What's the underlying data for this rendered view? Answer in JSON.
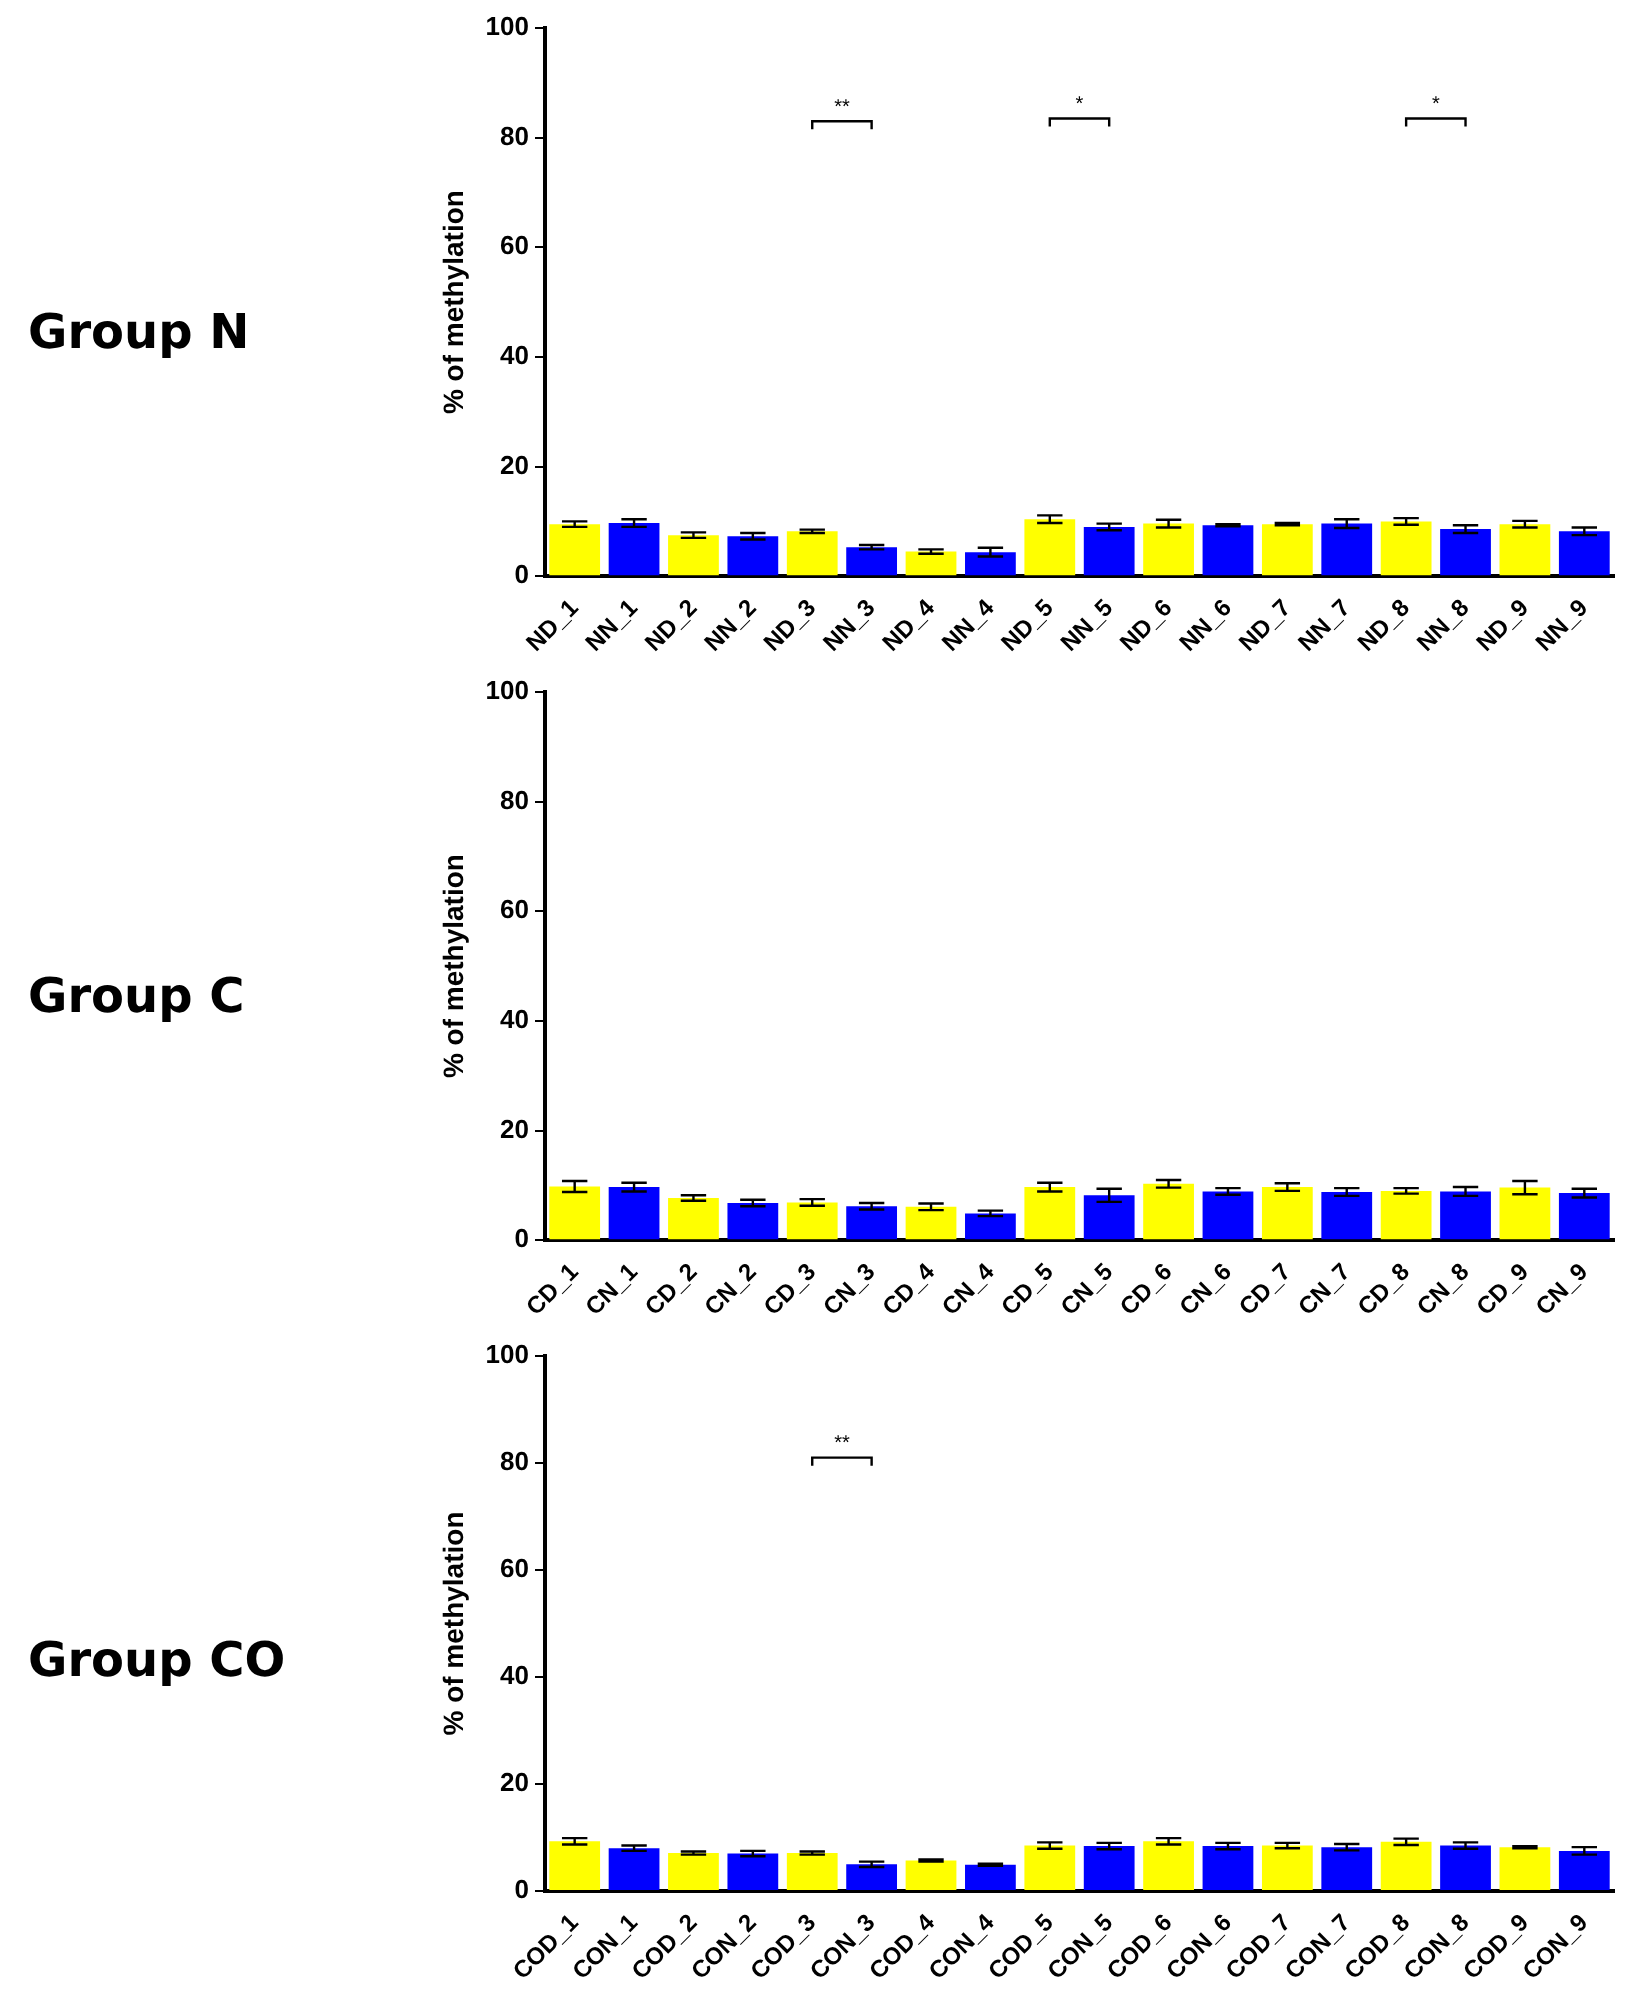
{
  "chart_data": [
    {
      "type": "bar",
      "title": "Group N",
      "ylabel": "% of methylation",
      "categories": [
        "ND_1",
        "NN_1",
        "ND_2",
        "NN_2",
        "ND_3",
        "NN_3",
        "ND_4",
        "NN_4",
        "ND_5",
        "NN_5",
        "ND_6",
        "NN_6",
        "ND_7",
        "NN_7",
        "ND_8",
        "NN_8",
        "ND_9",
        "NN_9"
      ],
      "values": [
        9.5,
        9.7,
        7.5,
        7.3,
        8.2,
        5.3,
        4.5,
        4.4,
        10.4,
        9,
        9.6,
        9.3,
        9.5,
        9.6,
        10,
        8.6,
        9.5,
        8.2
      ],
      "errors": [
        0.5,
        0.7,
        0.5,
        0.6,
        0.3,
        0.4,
        0.4,
        0.8,
        0.7,
        0.6,
        0.7,
        0.2,
        0.2,
        0.8,
        0.6,
        0.7,
        0.6,
        0.7
      ],
      "colors": [
        "#ffff00",
        "#0000ff",
        "#ffff00",
        "#0000ff",
        "#ffff00",
        "#0000ff",
        "#ffff00",
        "#0000ff",
        "#ffff00",
        "#0000ff",
        "#ffff00",
        "#0000ff",
        "#ffff00",
        "#0000ff",
        "#ffff00",
        "#0000ff",
        "#ffff00",
        "#0000ff"
      ],
      "ylim": [
        0,
        100
      ],
      "yticks": [
        0,
        20,
        40,
        60,
        80,
        100
      ],
      "grid": false,
      "legend": false,
      "annotations": [
        "**",
        "*",
        "*"
      ]
    },
    {
      "type": "bar",
      "title": "Group C",
      "ylabel": "% of methylation",
      "categories": [
        "CD_1",
        "CN_1",
        "CD_2",
        "CN_2",
        "CD_3",
        "CN_3",
        "CD_4",
        "CN_4",
        "CD_5",
        "CN_5",
        "CD_6",
        "CN_6",
        "CD_7",
        "CN_7",
        "CD_8",
        "CN_8",
        "CD_9",
        "CN_9"
      ],
      "values": [
        9.8,
        9.7,
        7.7,
        6.8,
        6.9,
        6.2,
        6.1,
        4.9,
        9.7,
        8.2,
        10.3,
        8.9,
        9.7,
        8.8,
        9,
        8.9,
        9.6,
        8.6
      ],
      "errors": [
        1,
        0.8,
        0.5,
        0.6,
        0.6,
        0.6,
        0.6,
        0.5,
        0.8,
        1.2,
        0.7,
        0.6,
        0.7,
        0.7,
        0.5,
        0.8,
        1.2,
        0.8
      ],
      "colors": [
        "#ffff00",
        "#0000ff",
        "#ffff00",
        "#0000ff",
        "#ffff00",
        "#0000ff",
        "#ffff00",
        "#0000ff",
        "#ffff00",
        "#0000ff",
        "#ffff00",
        "#0000ff",
        "#ffff00",
        "#0000ff",
        "#ffff00",
        "#0000ff",
        "#ffff00",
        "#0000ff"
      ],
      "ylim": [
        0,
        100
      ],
      "yticks": [
        0,
        20,
        40,
        60,
        80,
        100
      ],
      "grid": false,
      "legend": false
    },
    {
      "type": "bar",
      "title": "Group CO",
      "ylabel": "% of methylation",
      "categories": [
        "COD_1",
        "CON_1",
        "COD_2",
        "CON_2",
        "COD_3",
        "CON_3",
        "COD_4",
        "CON_4",
        "COD_5",
        "CON_5",
        "COD_6",
        "CON_6",
        "COD_7",
        "CON_7",
        "COD_8",
        "CON_8",
        "COD_9",
        "CON_9"
      ],
      "values": [
        9.3,
        8,
        7.1,
        7,
        7.1,
        5,
        5.7,
        4.9,
        8.5,
        8.4,
        9.3,
        8.4,
        8.5,
        8.2,
        9.2,
        8.5,
        8.2,
        7.5
      ],
      "errors": [
        0.6,
        0.5,
        0.3,
        0.5,
        0.3,
        0.5,
        0.2,
        0.2,
        0.6,
        0.6,
        0.6,
        0.6,
        0.5,
        0.6,
        0.6,
        0.6,
        0.2,
        0.7
      ],
      "colors": [
        "#ffff00",
        "#0000ff",
        "#ffff00",
        "#0000ff",
        "#ffff00",
        "#0000ff",
        "#ffff00",
        "#0000ff",
        "#ffff00",
        "#0000ff",
        "#ffff00",
        "#0000ff",
        "#ffff00",
        "#0000ff",
        "#ffff00",
        "#0000ff",
        "#ffff00",
        "#0000ff"
      ],
      "ylim": [
        0,
        100
      ],
      "yticks": [
        0,
        20,
        40,
        60,
        80,
        100
      ],
      "grid": false,
      "legend": false,
      "annotations": [
        "**"
      ]
    }
  ]
}
